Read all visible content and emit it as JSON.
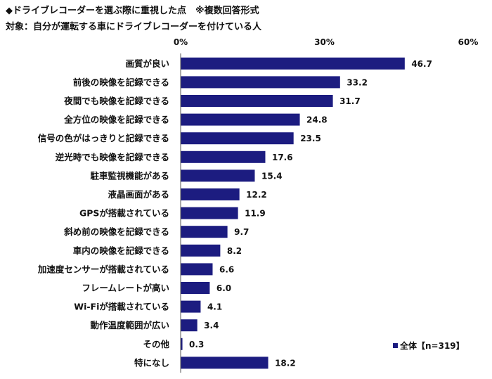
{
  "chart_data": {
    "type": "bar",
    "orientation": "horizontal",
    "title": "◆ドライブレコーダーを選ぶ際に重視した点　※複数回答形式",
    "subtitle": "対象：自分が運転する車にドライブレコーダーを付けている人",
    "xlim": [
      0,
      60
    ],
    "ticks": [
      "0%",
      "30%",
      "60%"
    ],
    "categories": [
      "画質が良い",
      "前後の映像を記録できる",
      "夜間でも映像を記録できる",
      "全方位の映像を記録できる",
      "信号の色がはっきりと記録できる",
      "逆光時でも映像を記録できる",
      "駐車監視機能がある",
      "液晶画面がある",
      "GPSが搭載されている",
      "斜め前の映像を記録できる",
      "車内の映像を記録できる",
      "加速度センサーが搭載されている",
      "フレームレートが高い",
      "Wi-Fiが搭載されている",
      "動作温度範囲が広い",
      "その他",
      "特になし"
    ],
    "series": [
      {
        "name": "全体【n=319】",
        "color": "#1c1c80",
        "values": [
          46.7,
          33.2,
          31.7,
          24.8,
          23.5,
          17.6,
          15.4,
          12.2,
          11.9,
          9.7,
          8.2,
          6.6,
          6.0,
          4.1,
          3.4,
          0.3,
          18.2
        ]
      }
    ],
    "value_labels": [
      "46.7",
      "33.2",
      "31.7",
      "24.8",
      "23.5",
      "17.6",
      "15.4",
      "12.2",
      "11.9",
      "9.7",
      "8.2",
      "6.6",
      "6.0",
      "4.1",
      "3.4",
      "0.3",
      "18.2"
    ],
    "legend_position": "bottom-right",
    "grid": false
  }
}
